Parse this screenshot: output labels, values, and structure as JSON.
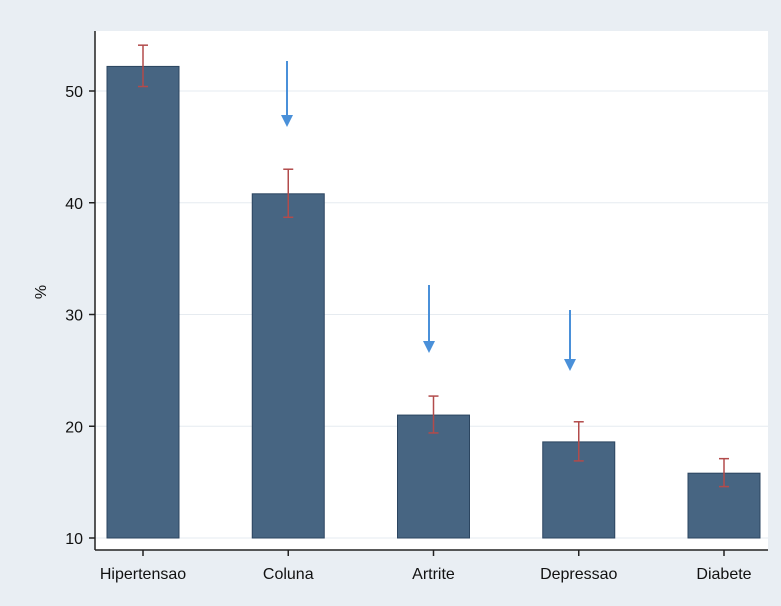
{
  "chart_data": {
    "type": "bar",
    "title": "",
    "xlabel": "",
    "ylabel": "%",
    "categories": [
      "Hipertensao",
      "Coluna",
      "Artrite",
      "Depressao",
      "Diabete"
    ],
    "values": [
      52.2,
      40.8,
      21.0,
      18.6,
      15.8
    ],
    "error_low": [
      50.4,
      38.7,
      19.4,
      16.9,
      14.6
    ],
    "error_high": [
      54.1,
      43.0,
      22.7,
      20.4,
      17.1
    ],
    "ylim": [
      10,
      55
    ],
    "yticks": [
      10,
      20,
      30,
      40,
      50
    ],
    "grid": true,
    "arrows_on": [
      "Coluna",
      "Artrite",
      "Depressao"
    ],
    "colors": {
      "bar_fill": "#476582",
      "bar_stroke": "#2b4560",
      "error_bar": "#b24b4b",
      "arrow": "#4a90d9",
      "plot_bg": "#ffffff",
      "outer_bg": "#e9eef3",
      "grid": "#e6ebf0"
    }
  }
}
